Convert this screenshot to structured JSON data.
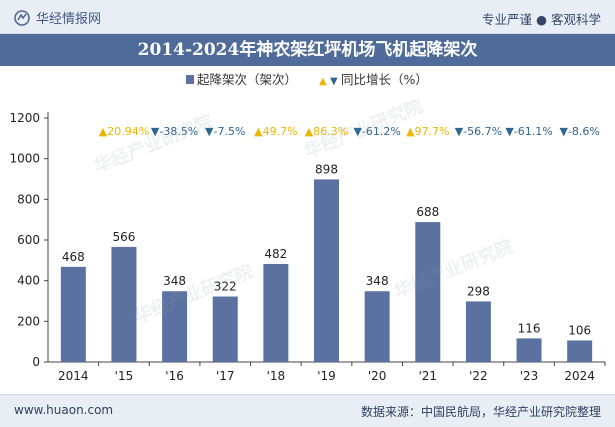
{
  "header": {
    "brand": "华经情报网",
    "tagline_parts": [
      "专业严谨",
      "客观科学"
    ],
    "separator": "●"
  },
  "title": "2014-2024年神农架红坪机场飞机起降架次",
  "footer": {
    "url": "www.huaon.com",
    "source": "数据来源：中国民航局，华经产业研究院整理"
  },
  "watermark": "华经产业研究院",
  "colors": {
    "bar": "#5b72a1",
    "up": "#f0b400",
    "down": "#2f6690",
    "title_bg": "#4f6b9a"
  },
  "chart_data": {
    "type": "bar",
    "title": "2014-2024年神农架红坪机场飞机起降架次",
    "categories": [
      "2014",
      "'15",
      "'16",
      "'17",
      "'18",
      "'19",
      "'20",
      "'21",
      "'22",
      "'23",
      "2024"
    ],
    "series": [
      {
        "name": "起降架次（架次）",
        "values": [
          468,
          566,
          348,
          322,
          482,
          898,
          348,
          688,
          298,
          116,
          106
        ]
      }
    ],
    "growth": {
      "name": "同比增长（%）",
      "labels": [
        "",
        "▲20.94%",
        "▼-38.5%",
        "▼-7.5%",
        "▲49.7%",
        "▲86.3%",
        "▼-61.2%",
        "▲97.7%",
        "▼-56.7%",
        "▼-61.1%",
        "▼-8.6%"
      ]
    },
    "yticks": [
      "0",
      "200",
      "400",
      "600",
      "800",
      "1000",
      "1200"
    ],
    "ylim": [
      0,
      1200
    ],
    "grid": false,
    "legend": "top-center"
  }
}
